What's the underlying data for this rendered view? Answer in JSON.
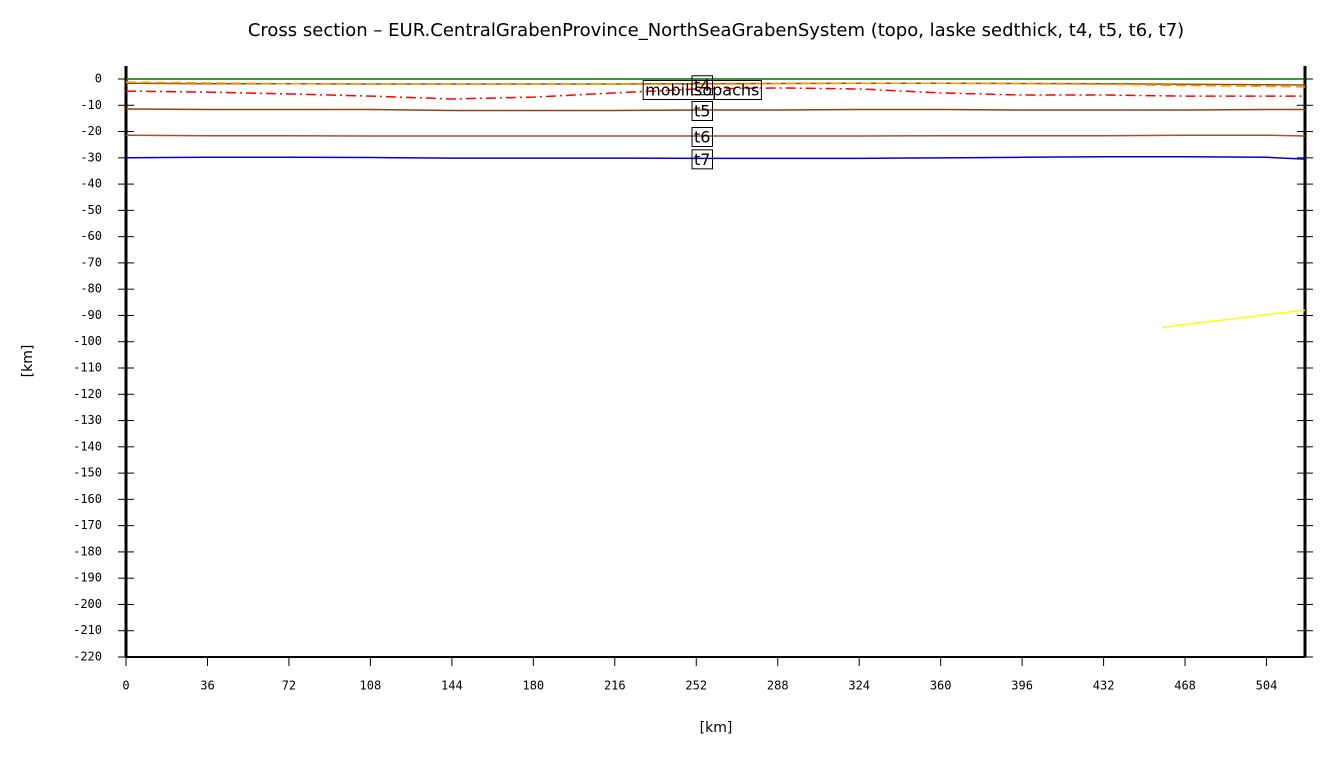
{
  "chart_data": {
    "type": "line",
    "title": "Cross section – EUR.CentralGrabenProvince_NorthSeaGrabenSystem (topo, laske sedthick, t4, t5, t6, t7)",
    "xlabel": "[km]",
    "ylabel": "[km]",
    "xlim": [
      0,
      521
    ],
    "ylim": [
      -220,
      0
    ],
    "xticks": [
      0,
      36,
      72,
      108,
      144,
      180,
      216,
      252,
      288,
      324,
      360,
      396,
      432,
      468,
      504
    ],
    "yticks": [
      0,
      -10,
      -20,
      -30,
      -40,
      -50,
      -60,
      -70,
      -80,
      -90,
      -100,
      -110,
      -120,
      -130,
      -140,
      -150,
      -160,
      -170,
      -180,
      -190,
      -200,
      -210,
      -220
    ],
    "x": [
      0,
      36,
      72,
      108,
      144,
      180,
      216,
      252,
      288,
      324,
      360,
      396,
      432,
      468,
      504,
      521
    ],
    "series": [
      {
        "color": "#007000",
        "style": "solid",
        "values": [
          0,
          0,
          0,
          0,
          0,
          0,
          0,
          0,
          0,
          0,
          0,
          0,
          0,
          0,
          0,
          0
        ]
      },
      {
        "color": "#a05000",
        "style": "solid",
        "values": [
          -1.6,
          -1.8,
          -1.8,
          -1.9,
          -1.9,
          -1.9,
          -1.9,
          -1.8,
          -1.7,
          -1.6,
          -1.6,
          -1.7,
          -1.8,
          -2,
          -2.2,
          -2.3
        ]
      },
      {
        "name": "t4",
        "color": "#ff9900",
        "style": "dashed",
        "values": [
          -1.2,
          -1.5,
          -1.8,
          -2,
          -2,
          -2,
          -2,
          -2,
          -1.8,
          -1.6,
          -1.6,
          -1.8,
          -2,
          -2.5,
          -2.8,
          -3
        ]
      },
      {
        "name": "mobilisopachs",
        "color": "#ff0000",
        "style": "dashdot",
        "values": [
          -4.6,
          -5,
          -5.7,
          -6.5,
          -7.6,
          -6.9,
          -5.3,
          -3.8,
          -3.4,
          -3.8,
          -5.3,
          -6.1,
          -6.1,
          -6.5,
          -6.5,
          -6.5
        ]
      },
      {
        "name": "t5",
        "color": "#8b4513",
        "style": "solid",
        "values": [
          -11.4,
          -11.6,
          -11.6,
          -11.6,
          -12,
          -12,
          -12,
          -11.8,
          -11.8,
          -11.6,
          -11.6,
          -11.8,
          -11.8,
          -11.8,
          -11.6,
          -11.6
        ]
      },
      {
        "name": "t6",
        "color": "#a0522d",
        "style": "solid",
        "values": [
          -21.4,
          -21.6,
          -21.6,
          -21.7,
          -21.7,
          -21.7,
          -21.7,
          -21.7,
          -21.7,
          -21.7,
          -21.6,
          -21.6,
          -21.6,
          -21.4,
          -21.4,
          -21.7
        ]
      },
      {
        "name": "t7",
        "color": "#0000dd",
        "style": "solid",
        "values": [
          -30,
          -29.8,
          -29.8,
          -29.9,
          -30.1,
          -30.1,
          -30.1,
          -30.2,
          -30.2,
          -30.2,
          -30,
          -29.8,
          -29.6,
          -29.6,
          -29.8,
          -30.5
        ]
      },
      {
        "color": "#ffff00",
        "style": "solid",
        "x": [
          458,
          521
        ],
        "values": [
          -94.5,
          -88
        ]
      }
    ]
  }
}
